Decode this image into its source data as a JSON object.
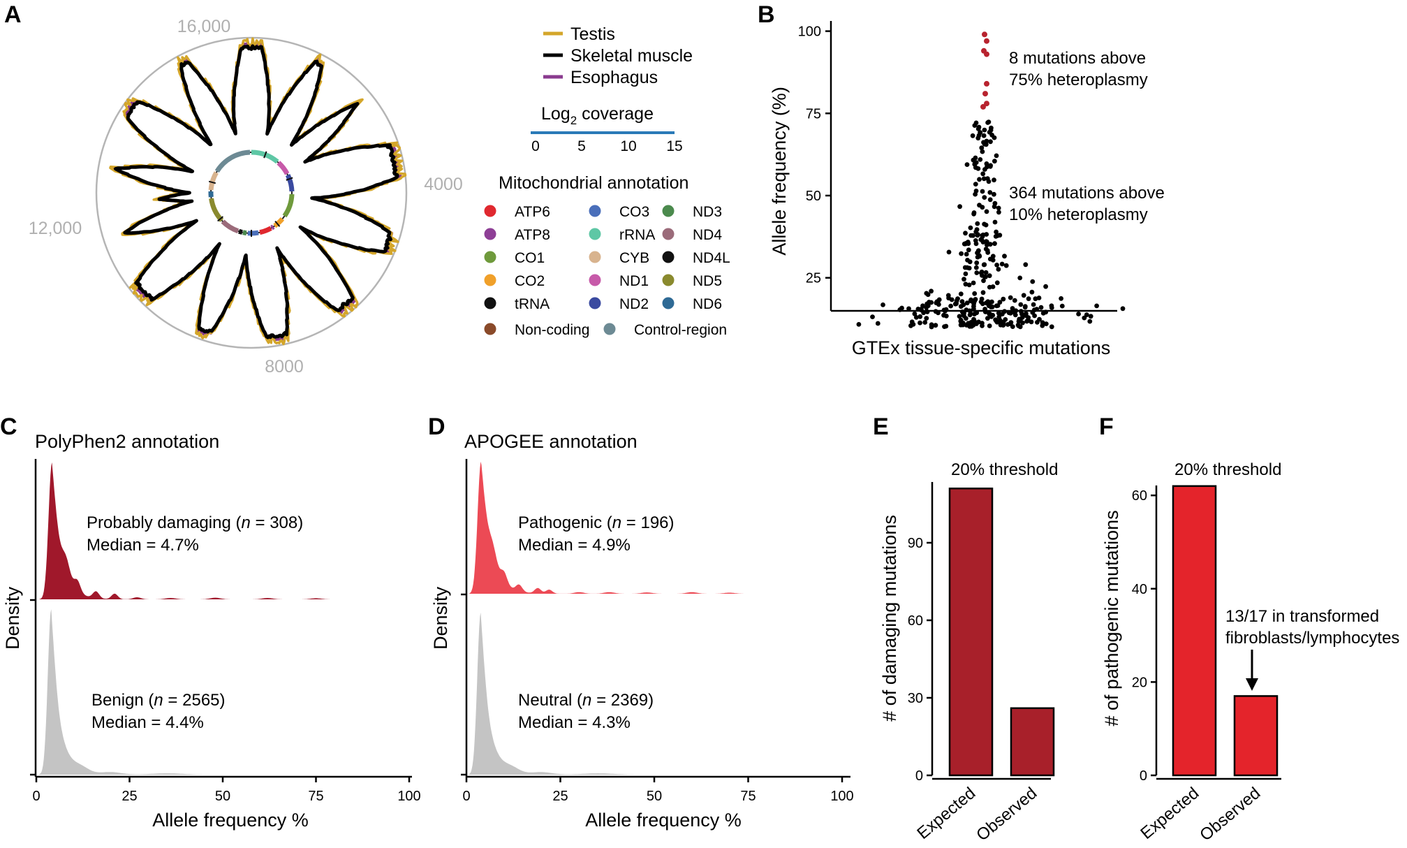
{
  "panels": {
    "A": "A",
    "B": "B",
    "C": "C",
    "D": "D",
    "E": "E",
    "F": "F"
  },
  "colors": {
    "testis": "#d4a62a",
    "skeletal_muscle": "#000000",
    "esophagus": "#8a3b8f",
    "coverage_bar": "#2a7ab8",
    "ring_gray": "#b5b5b5",
    "red_point": "#b8232f",
    "damaging_fill": "#a0182b",
    "pathogenic_fill": "#ec4a55",
    "neutral_fill": "#c4c4c4",
    "bar_E": "#a8202a",
    "bar_F": "#e4242b"
  },
  "chart_data": [
    {
      "id": "A",
      "type": "polar-coverage",
      "position_labels": [
        {
          "pos": "16,000",
          "where": "top"
        },
        {
          "pos": "4000",
          "where": "right"
        },
        {
          "pos": "8000",
          "where": "bottom"
        },
        {
          "pos": "12,000",
          "where": "left"
        }
      ],
      "series": [
        {
          "name": "Testis",
          "color": "#d4a62a"
        },
        {
          "name": "Skeletal muscle",
          "color": "#000000"
        },
        {
          "name": "Esophagus",
          "color": "#8a3b8f"
        }
      ],
      "coverage_scale": {
        "label": "Log",
        "sub": "2",
        "label_rest": " coverage",
        "ticks": [
          "0",
          "5",
          "10",
          "15"
        ]
      },
      "annotation_title": "Mitochondrial annotation",
      "annotation_legend": [
        {
          "name": "ATP6",
          "color": "#e0282f"
        },
        {
          "name": "CO3",
          "color": "#4a6fba"
        },
        {
          "name": "ND3",
          "color": "#4b8a4d"
        },
        {
          "name": "ATP8",
          "color": "#8e3f96"
        },
        {
          "name": "rRNA",
          "color": "#5ec7a5"
        },
        {
          "name": "ND4",
          "color": "#9b6b7a"
        },
        {
          "name": "CO1",
          "color": "#6f9a3c"
        },
        {
          "name": "CYB",
          "color": "#d8b38e"
        },
        {
          "name": "ND4L",
          "color": "#111111"
        },
        {
          "name": "CO2",
          "color": "#f0a02a"
        },
        {
          "name": "ND1",
          "color": "#c75aa9"
        },
        {
          "name": "ND5",
          "color": "#8a8a2e"
        },
        {
          "name": "tRNA",
          "color": "#111111"
        },
        {
          "name": "ND2",
          "color": "#3a4aa0"
        },
        {
          "name": "ND6",
          "color": "#2f6a95"
        },
        {
          "name": "Non-coding",
          "color": "#8a4a2a"
        },
        {
          "name": "Control-region",
          "color": "#6d8a94"
        }
      ]
    },
    {
      "id": "B",
      "type": "scatter",
      "ylabel": "Allele frequency (%)",
      "xlabel": "GTEx tissue-specific mutations",
      "ylim": [
        10,
        100
      ],
      "yticks": [
        25,
        50,
        75,
        100
      ],
      "annotations": [
        {
          "line1": "8 mutations above",
          "line2": "75% heteroplasmy"
        },
        {
          "line1": "364 mutations above",
          "line2": "10% heteroplasmy"
        }
      ],
      "counts": {
        "above_75": 8,
        "above_10": 364
      },
      "high_values": [
        99,
        97,
        94,
        93,
        84,
        81,
        78,
        77
      ]
    },
    {
      "id": "C",
      "type": "area",
      "title": "PolyPhen2 annotation",
      "ylabel": "Density",
      "xlabel": "Allele frequency %",
      "xlim": [
        0,
        100
      ],
      "xticks": [
        0,
        25,
        50,
        75,
        100
      ],
      "series": [
        {
          "name": "Probably damaging",
          "n": "308",
          "median": "4.7%",
          "color": "#a0182b"
        },
        {
          "name": "Benign",
          "n": "2565",
          "median": "4.4%",
          "color": "#c4c4c4"
        }
      ]
    },
    {
      "id": "D",
      "type": "area",
      "title": "APOGEE annotation",
      "ylabel": "Density",
      "xlabel": "Allele frequency %",
      "xlim": [
        0,
        100
      ],
      "xticks": [
        0,
        25,
        50,
        75,
        100
      ],
      "series": [
        {
          "name": "Pathogenic",
          "n": "196",
          "median": "4.9%",
          "color": "#ec4a55"
        },
        {
          "name": "Neutral",
          "n": "2369",
          "median": "4.3%",
          "color": "#c4c4c4"
        }
      ]
    },
    {
      "id": "E",
      "type": "bar",
      "title": "20% threshold",
      "ylabel": "# of damaging mutations",
      "categories": [
        "Expected",
        "Observed"
      ],
      "values": [
        111,
        26
      ],
      "ylim": [
        0,
        112
      ],
      "yticks": [
        0,
        30,
        60,
        90
      ]
    },
    {
      "id": "F",
      "type": "bar",
      "title": "20% threshold",
      "ylabel": "# of pathogenic mutations",
      "categories": [
        "Expected",
        "Observed"
      ],
      "values": [
        62,
        17
      ],
      "ylim": [
        0,
        62
      ],
      "yticks": [
        0,
        20,
        40,
        60
      ],
      "annotation": {
        "line1": "13/17 in transformed",
        "line2": "fibroblasts/lymphocytes"
      }
    }
  ]
}
